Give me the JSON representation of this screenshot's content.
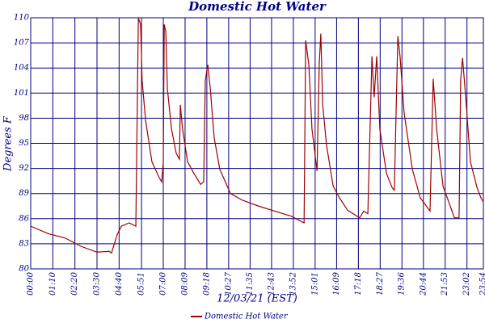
{
  "chart_data": {
    "type": "line",
    "title": "Domestic Hot Water",
    "xlabel": "12/03/21 (EST)",
    "ylabel": "Degrees F",
    "xlim": [
      0,
      1434
    ],
    "ylim": [
      80,
      110
    ],
    "yticks": [
      80,
      83,
      86,
      89,
      92,
      95,
      98,
      101,
      104,
      107,
      110
    ],
    "xticks": [
      {
        "value": 0,
        "label": "00:00"
      },
      {
        "value": 70,
        "label": "01:10"
      },
      {
        "value": 140,
        "label": "02:20"
      },
      {
        "value": 210,
        "label": "03:30"
      },
      {
        "value": 280,
        "label": "04:40"
      },
      {
        "value": 351,
        "label": "05:51"
      },
      {
        "value": 420,
        "label": "07:00"
      },
      {
        "value": 489,
        "label": "08:09"
      },
      {
        "value": 558,
        "label": "09:18"
      },
      {
        "value": 627,
        "label": "10:27"
      },
      {
        "value": 695,
        "label": "11:35"
      },
      {
        "value": 763,
        "label": "12:43"
      },
      {
        "value": 832,
        "label": "13:52"
      },
      {
        "value": 901,
        "label": "15:01"
      },
      {
        "value": 969,
        "label": "16:09"
      },
      {
        "value": 1038,
        "label": "17:18"
      },
      {
        "value": 1107,
        "label": "18:27"
      },
      {
        "value": 1176,
        "label": "19:36"
      },
      {
        "value": 1244,
        "label": "20:44"
      },
      {
        "value": 1313,
        "label": "21:53"
      },
      {
        "value": 1382,
        "label": "23:02"
      },
      {
        "value": 1434,
        "label": "23:54"
      }
    ],
    "grid": true,
    "x": [
      0,
      56,
      108,
      159,
      210,
      248,
      256,
      274,
      287,
      312,
      333,
      341,
      348,
      353,
      364,
      384,
      407,
      415,
      420,
      423,
      428,
      433,
      446,
      461,
      471,
      474,
      481,
      497,
      517,
      538,
      548,
      553,
      561,
      569,
      581,
      599,
      633,
      671,
      722,
      773,
      825,
      866,
      871,
      881,
      891,
      907,
      914,
      919,
      925,
      937,
      958,
      978,
      1004,
      1042,
      1055,
      1068,
      1081,
      1088,
      1096,
      1106,
      1127,
      1145,
      1152,
      1158,
      1163,
      1170,
      1183,
      1209,
      1234,
      1265,
      1275,
      1286,
      1306,
      1332,
      1342,
      1357,
      1362,
      1368,
      1378,
      1393,
      1414,
      1426,
      1434
    ],
    "series": [
      {
        "name": "Domestic Hot Water",
        "color": "#a00000",
        "values": [
          85.1,
          84.2,
          83.7,
          82.7,
          82.0,
          82.1,
          81.9,
          84.1,
          85.1,
          85.5,
          85.1,
          110,
          109.2,
          102.5,
          97.7,
          92.8,
          90.9,
          90.4,
          92.8,
          109.2,
          108.3,
          101.5,
          96.7,
          93.8,
          93.1,
          99.6,
          96.7,
          92.8,
          91.4,
          90.1,
          90.4,
          102.5,
          104.4,
          101.5,
          95.7,
          91.9,
          89.0,
          88.2,
          87.5,
          86.9,
          86.3,
          85.5,
          107.3,
          104.4,
          96.7,
          91.7,
          104.4,
          108.1,
          99.6,
          94.8,
          89.9,
          88.5,
          87.0,
          86.1,
          86.9,
          86.6,
          105.4,
          100.5,
          105.4,
          96.7,
          91.4,
          89.7,
          89.4,
          99.6,
          107.8,
          105.4,
          98.6,
          91.9,
          88.5,
          86.9,
          102.7,
          96.7,
          89.9,
          87.2,
          86.1,
          86.1,
          102.5,
          105.2,
          100.5,
          92.8,
          89.7,
          88.5,
          88.0
        ]
      }
    ]
  }
}
